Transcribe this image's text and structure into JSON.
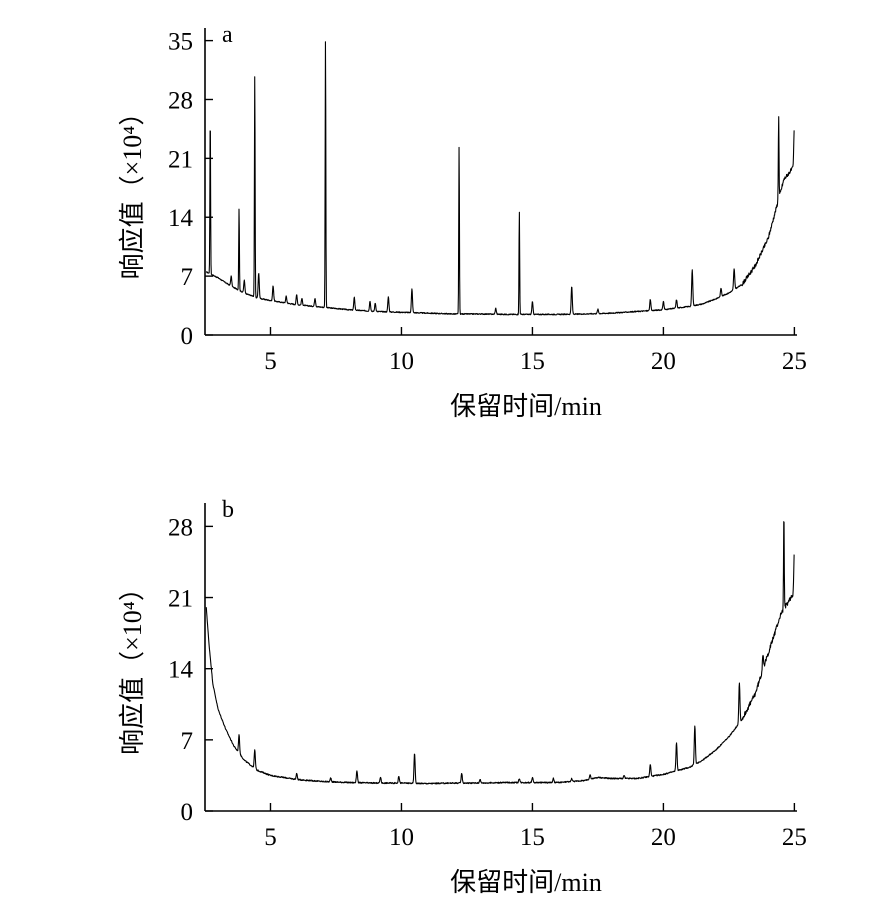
{
  "chart_data": [
    {
      "type": "line",
      "panel_label": "a",
      "xlabel": "保留时间/min",
      "ylabel": "响应值（×10⁴）",
      "xlim": [
        2.5,
        25.1
      ],
      "ylim": [
        0,
        36.5
      ],
      "x_ticks": [
        5,
        10,
        15,
        20,
        25
      ],
      "y_ticks": [
        0,
        7,
        14,
        21,
        28,
        35
      ],
      "grid": false,
      "series": [
        {
          "color": "#000000",
          "baseline": [
            [
              2.55,
              7.5
            ],
            [
              3.0,
              6.8
            ],
            [
              3.5,
              5.8
            ],
            [
              4.0,
              5.0
            ],
            [
              4.5,
              4.4
            ],
            [
              5.0,
              4.1
            ],
            [
              6.0,
              3.6
            ],
            [
              7.0,
              3.3
            ],
            [
              8.0,
              3.0
            ],
            [
              9.0,
              2.8
            ],
            [
              10.0,
              2.7
            ],
            [
              11.0,
              2.6
            ],
            [
              12.0,
              2.5
            ],
            [
              13.0,
              2.5
            ],
            [
              14.0,
              2.45
            ],
            [
              15.0,
              2.45
            ],
            [
              16.0,
              2.45
            ],
            [
              17.0,
              2.5
            ],
            [
              18.0,
              2.6
            ],
            [
              19.0,
              2.8
            ],
            [
              20.0,
              3.0
            ],
            [
              21.0,
              3.4
            ],
            [
              21.5,
              3.7
            ],
            [
              22.0,
              4.3
            ],
            [
              22.5,
              5.0
            ],
            [
              23.0,
              6.0
            ],
            [
              23.5,
              8.2
            ],
            [
              24.0,
              11.5
            ],
            [
              24.3,
              15.0
            ],
            [
              24.6,
              18.5
            ],
            [
              24.9,
              19.7
            ],
            [
              25.0,
              20.0
            ]
          ],
          "peaks": [
            [
              2.7,
              19.0
            ],
            [
              3.5,
              1.2
            ],
            [
              3.8,
              9.8
            ],
            [
              4.0,
              1.5
            ],
            [
              4.4,
              26.5
            ],
            [
              4.55,
              3.0
            ],
            [
              5.1,
              1.8
            ],
            [
              5.6,
              0.8
            ],
            [
              6.0,
              1.2
            ],
            [
              6.2,
              0.8
            ],
            [
              6.7,
              1.0
            ],
            [
              7.1,
              32.0
            ],
            [
              8.2,
              1.5
            ],
            [
              8.8,
              1.2
            ],
            [
              9.0,
              1.0
            ],
            [
              9.5,
              1.8
            ],
            [
              10.4,
              2.8
            ],
            [
              12.2,
              20.0
            ],
            [
              13.6,
              0.7
            ],
            [
              14.5,
              12.3
            ],
            [
              15.0,
              1.5
            ],
            [
              16.5,
              3.3
            ],
            [
              17.5,
              0.5
            ],
            [
              19.5,
              1.3
            ],
            [
              20.0,
              1.0
            ],
            [
              20.5,
              1.0
            ],
            [
              21.1,
              4.3
            ],
            [
              22.2,
              1.0
            ],
            [
              22.7,
              2.5
            ],
            [
              24.4,
              10.0
            ],
            [
              25.0,
              4.9
            ]
          ]
        }
      ]
    },
    {
      "type": "line",
      "panel_label": "b",
      "xlabel": "保留时间/min",
      "ylabel": "响应值（×10⁴）",
      "xlim": [
        2.5,
        25.1
      ],
      "ylim": [
        0,
        30.3
      ],
      "x_ticks": [
        5,
        10,
        15,
        20,
        25
      ],
      "y_ticks": [
        0,
        7,
        14,
        21,
        28
      ],
      "grid": false,
      "series": [
        {
          "color": "#000000",
          "baseline": [
            [
              2.55,
              20.0
            ],
            [
              2.65,
              16.5
            ],
            [
              2.8,
              12.5
            ],
            [
              3.0,
              10.0
            ],
            [
              3.3,
              8.0
            ],
            [
              3.6,
              6.4
            ],
            [
              4.0,
              5.0
            ],
            [
              4.5,
              4.0
            ],
            [
              5.0,
              3.5
            ],
            [
              6.0,
              3.1
            ],
            [
              7.0,
              2.9
            ],
            [
              8.0,
              2.8
            ],
            [
              9.0,
              2.75
            ],
            [
              10.0,
              2.75
            ],
            [
              11.0,
              2.7
            ],
            [
              12.0,
              2.75
            ],
            [
              13.0,
              2.75
            ],
            [
              14.0,
              2.8
            ],
            [
              15.0,
              2.8
            ],
            [
              16.0,
              2.8
            ],
            [
              17.0,
              3.0
            ],
            [
              17.5,
              3.3
            ],
            [
              18.0,
              3.2
            ],
            [
              19.0,
              3.2
            ],
            [
              20.0,
              3.6
            ],
            [
              21.0,
              4.3
            ],
            [
              21.5,
              5.0
            ],
            [
              22.0,
              6.0
            ],
            [
              22.5,
              7.3
            ],
            [
              23.0,
              9.0
            ],
            [
              23.5,
              11.5
            ],
            [
              24.0,
              15.5
            ],
            [
              24.5,
              19.5
            ],
            [
              25.0,
              21.5
            ]
          ],
          "peaks": [
            [
              3.8,
              1.8
            ],
            [
              4.4,
              1.8
            ],
            [
              6.0,
              0.6
            ],
            [
              7.3,
              0.4
            ],
            [
              8.3,
              1.2
            ],
            [
              9.2,
              0.6
            ],
            [
              9.9,
              0.7
            ],
            [
              10.5,
              3.0
            ],
            [
              12.3,
              1.0
            ],
            [
              13.0,
              0.4
            ],
            [
              14.5,
              0.4
            ],
            [
              15.0,
              0.5
            ],
            [
              15.8,
              0.4
            ],
            [
              16.5,
              0.3
            ],
            [
              17.2,
              0.5
            ],
            [
              18.5,
              0.3
            ],
            [
              19.5,
              1.2
            ],
            [
              20.5,
              2.8
            ],
            [
              21.2,
              3.8
            ],
            [
              22.9,
              4.0
            ],
            [
              23.8,
              1.6
            ],
            [
              24.6,
              9.5
            ],
            [
              25.0,
              4.4
            ]
          ]
        }
      ]
    }
  ]
}
